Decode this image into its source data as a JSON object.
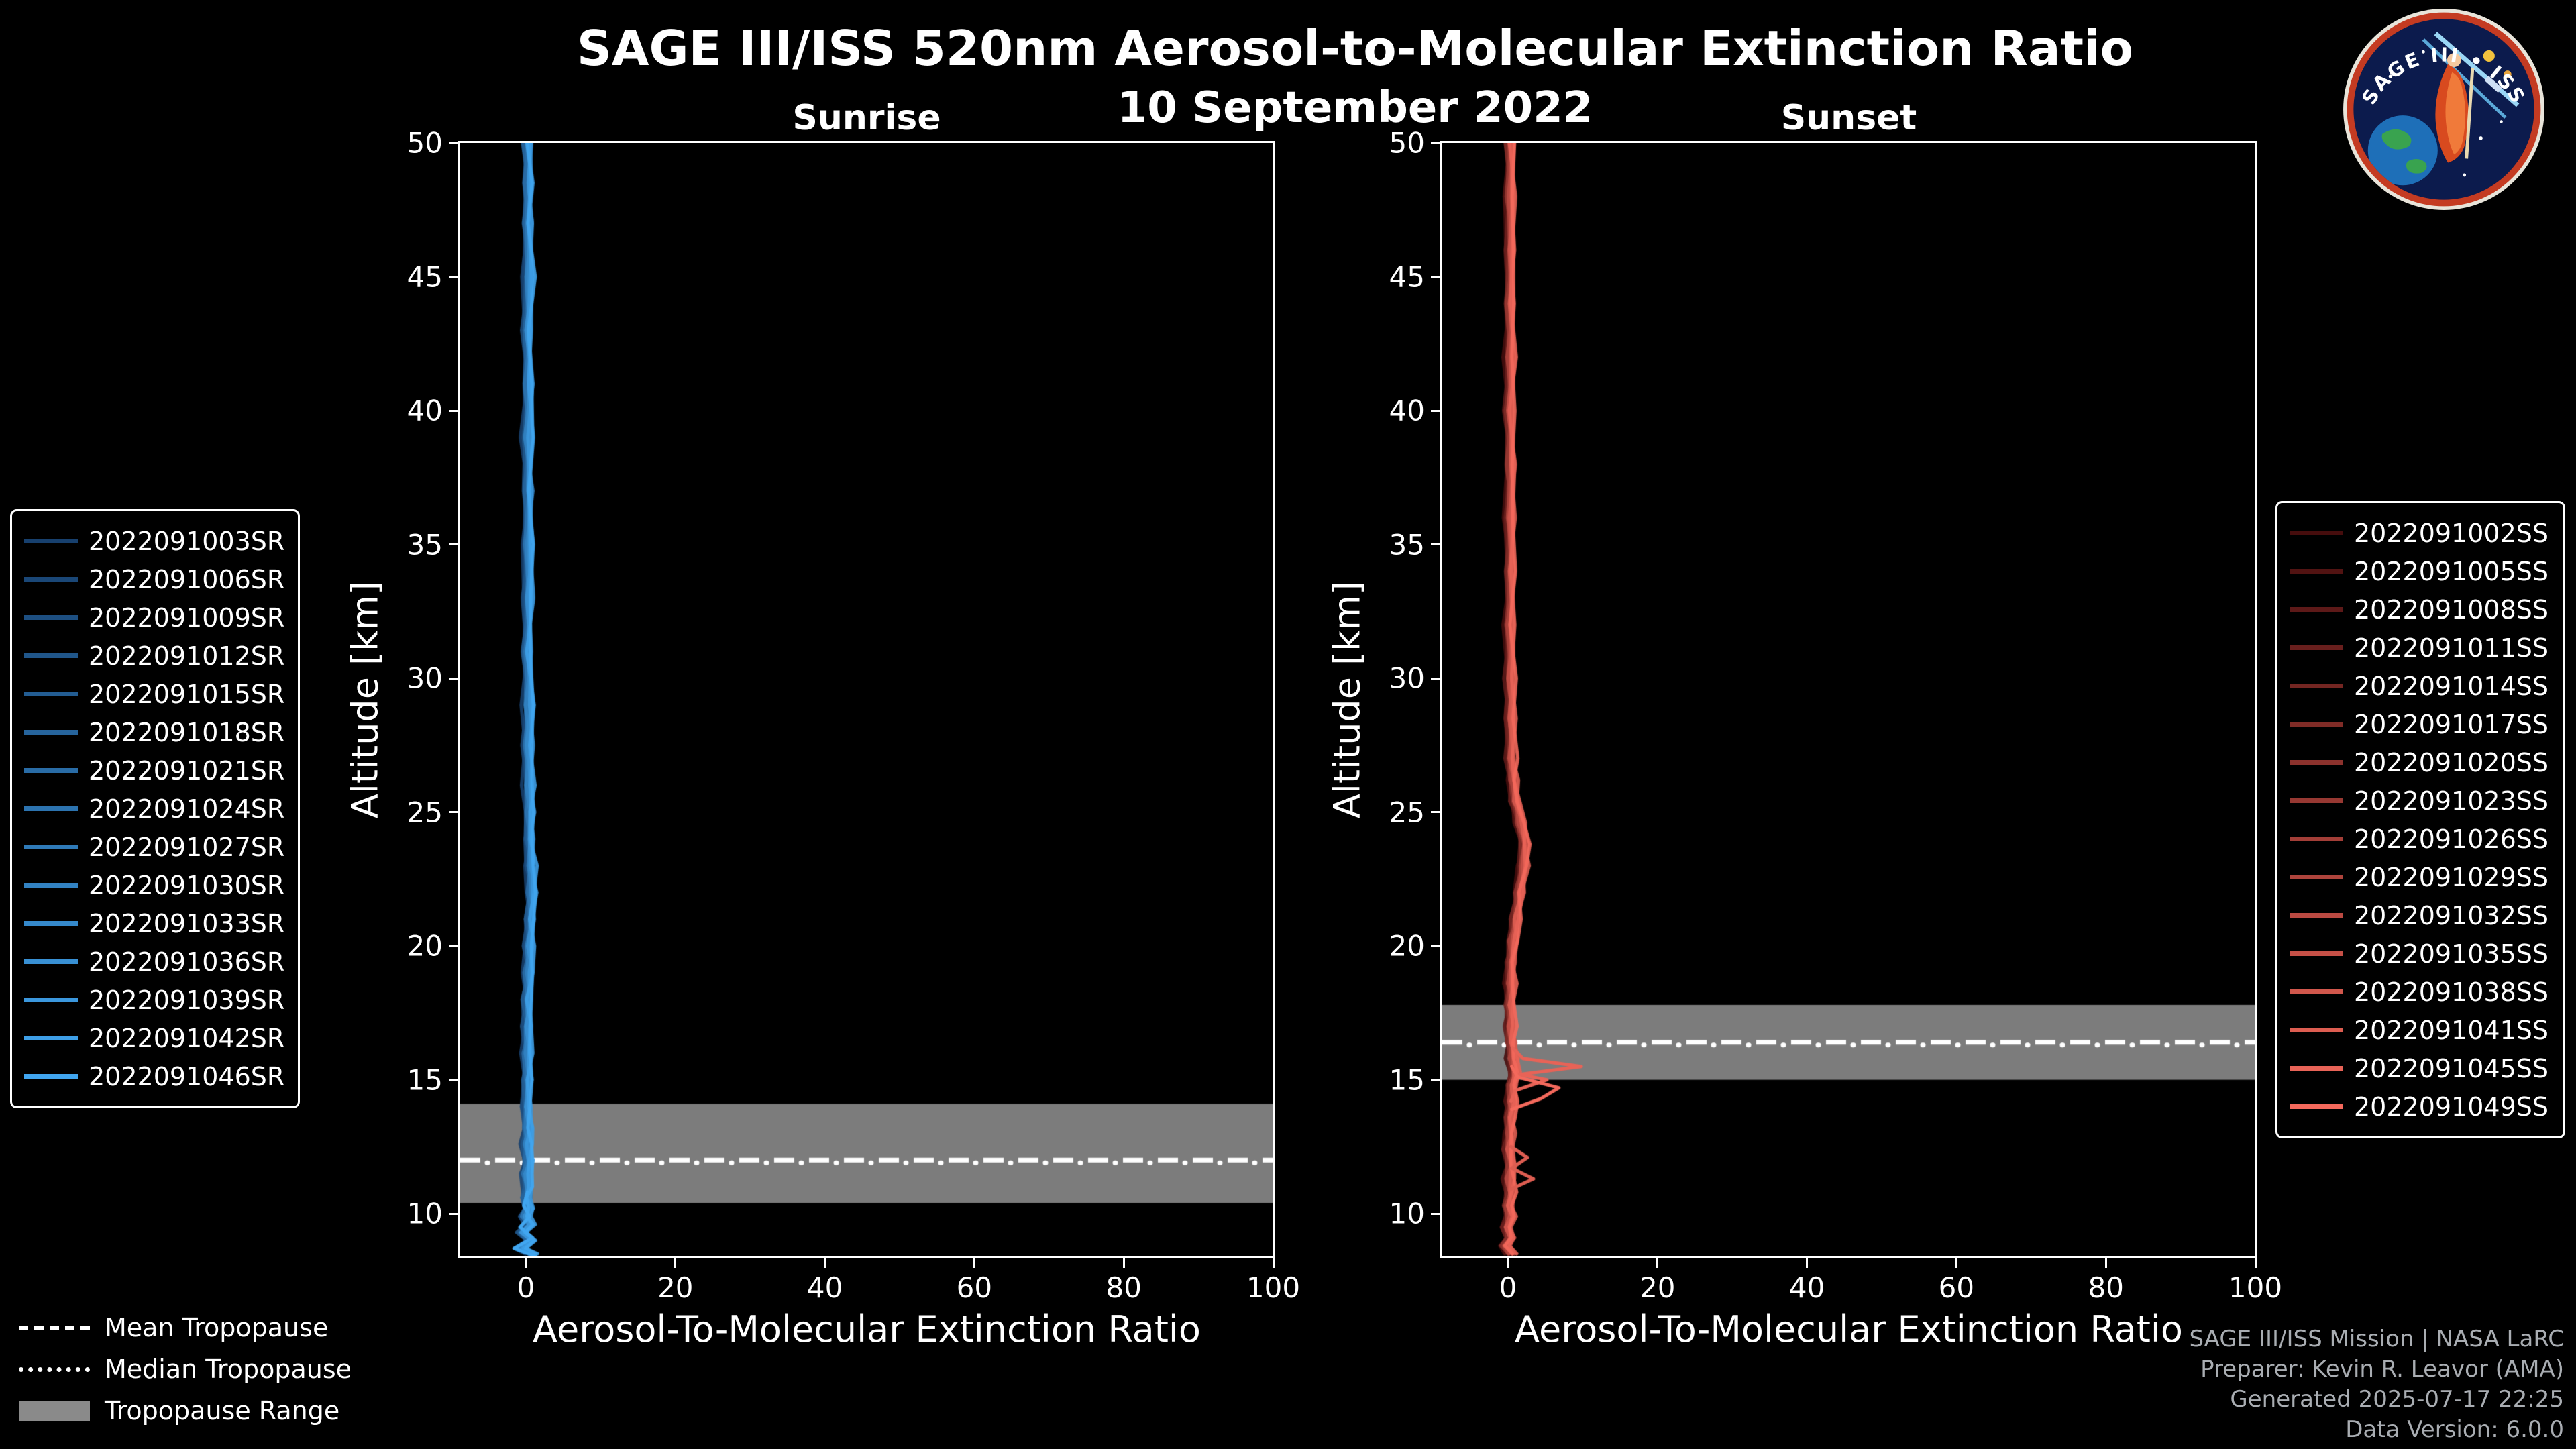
{
  "header": {
    "title": "SAGE III/ISS 520nm Aerosol-to-Molecular Extinction Ratio",
    "date": "10 September 2022"
  },
  "logo": {
    "ring_text": "SAGE III • ISS",
    "ring_color": "#c43b22",
    "bg_color": "#0c1b4d"
  },
  "tropopause_legend": {
    "mean_label": "Mean Tropopause",
    "median_label": "Median Tropopause",
    "range_label": "Tropopause Range",
    "range_color": "#8a8a8a"
  },
  "attribution": {
    "line1": "SAGE III/ISS Mission | NASA LaRC",
    "line2": "Preparer: Kevin R. Leavor (AMA)",
    "line3": "Generated 2025-07-17 22:25",
    "line4": "Data Version: 6.0.0"
  },
  "chart_data": [
    {
      "type": "line",
      "id": "sunrise",
      "title": "Sunrise",
      "xlabel": "Aerosol-To-Molecular Extinction Ratio",
      "ylabel": "Altitude [km]",
      "xlim": [
        -8.8,
        100
      ],
      "ylim": [
        8.4,
        50
      ],
      "xticks": [
        0,
        20,
        40,
        60,
        80,
        100
      ],
      "yticks": [
        10,
        15,
        20,
        25,
        30,
        35,
        40,
        45,
        50
      ],
      "band_color": "#8a8a8a",
      "axis_color": "#ffffff",
      "spread": 0.9,
      "tropopause": {
        "mean_km": 12.0,
        "median_km": 11.9,
        "range_km": [
          10.4,
          14.1
        ]
      },
      "events": [
        {
          "id": "2022091003SR",
          "color": "#17406e"
        },
        {
          "id": "2022091006SR",
          "color": "#1a4777"
        },
        {
          "id": "2022091009SR",
          "color": "#1d4f81"
        },
        {
          "id": "2022091012SR",
          "color": "#20568a"
        },
        {
          "id": "2022091015SR",
          "color": "#235d93"
        },
        {
          "id": "2022091018SR",
          "color": "#26649c"
        },
        {
          "id": "2022091021SR",
          "color": "#296ca6"
        },
        {
          "id": "2022091024SR",
          "color": "#2c73af"
        },
        {
          "id": "2022091027SR",
          "color": "#2f7ab8"
        },
        {
          "id": "2022091030SR",
          "color": "#3282c2"
        },
        {
          "id": "2022091033SR",
          "color": "#3589cb"
        },
        {
          "id": "2022091036SR",
          "color": "#3890d4"
        },
        {
          "id": "2022091039SR",
          "color": "#3b97dd"
        },
        {
          "id": "2022091042SR",
          "color": "#3e9fe7"
        },
        {
          "id": "2022091046SR",
          "color": "#41a6f0"
        }
      ],
      "mean_profile": [
        [
          8.5,
          0.6
        ],
        [
          8.7,
          -0.8
        ],
        [
          9.0,
          0.7
        ],
        [
          9.3,
          -0.5
        ],
        [
          9.6,
          0.5
        ],
        [
          9.9,
          -0.2
        ],
        [
          10.2,
          0.3
        ],
        [
          10.6,
          0.0
        ],
        [
          11.0,
          0.3
        ],
        [
          11.5,
          0.0
        ],
        [
          12.0,
          0.3
        ],
        [
          12.6,
          0.1
        ],
        [
          13.2,
          0.2
        ],
        [
          14.0,
          0.1
        ],
        [
          15.0,
          0.2
        ],
        [
          16.0,
          0.1
        ],
        [
          17.0,
          0.2
        ],
        [
          18.0,
          0.2
        ],
        [
          19.0,
          0.3
        ],
        [
          20.0,
          0.4
        ],
        [
          21.0,
          0.6
        ],
        [
          22.0,
          0.7
        ],
        [
          23.0,
          0.6
        ],
        [
          24.0,
          0.5
        ],
        [
          25.0,
          0.4
        ],
        [
          26.0,
          0.3
        ],
        [
          27.5,
          0.2
        ],
        [
          29.0,
          0.3
        ],
        [
          31.0,
          0.2
        ],
        [
          33.0,
          0.3
        ],
        [
          35.0,
          0.2
        ],
        [
          37.0,
          0.3
        ],
        [
          39.0,
          0.2
        ],
        [
          41.0,
          0.3
        ],
        [
          43.0,
          0.2
        ],
        [
          45.0,
          0.3
        ],
        [
          47.0,
          0.2
        ],
        [
          48.5,
          0.3
        ],
        [
          50.0,
          0.2
        ]
      ],
      "outlier_profiles": [
        {
          "color": "#41a6f0",
          "points": [
            [
              8.4,
              1.3
            ],
            [
              8.7,
              -1.6
            ],
            [
              9.1,
              0.9
            ],
            [
              9.5,
              -0.8
            ],
            [
              9.9,
              0.5
            ],
            [
              10.3,
              -0.3
            ],
            [
              10.8,
              0.2
            ]
          ]
        }
      ]
    },
    {
      "type": "line",
      "id": "sunset",
      "title": "Sunset",
      "xlabel": "Aerosol-To-Molecular Extinction Ratio",
      "ylabel": "Altitude [km]",
      "xlim": [
        -8.8,
        100
      ],
      "ylim": [
        8.4,
        50
      ],
      "xticks": [
        0,
        20,
        40,
        60,
        80,
        100
      ],
      "yticks": [
        10,
        15,
        20,
        25,
        30,
        35,
        40,
        45,
        50
      ],
      "band_color": "#8a8a8a",
      "axis_color": "#ffffff",
      "spread": 0.9,
      "tropopause": {
        "mean_km": 16.4,
        "median_km": 16.3,
        "range_km": [
          15.0,
          17.8
        ]
      },
      "events": [
        {
          "id": "2022091002SS",
          "color": "#460d0d"
        },
        {
          "id": "2022091005SS",
          "color": "#521312"
        },
        {
          "id": "2022091008SS",
          "color": "#5d1918"
        },
        {
          "id": "2022091011SS",
          "color": "#691f1d"
        },
        {
          "id": "2022091014SS",
          "color": "#742622"
        },
        {
          "id": "2022091017SS",
          "color": "#802c27"
        },
        {
          "id": "2022091020SS",
          "color": "#8c322d"
        },
        {
          "id": "2022091023SS",
          "color": "#973832"
        },
        {
          "id": "2022091026SS",
          "color": "#a33e37"
        },
        {
          "id": "2022091029SS",
          "color": "#ae443c"
        },
        {
          "id": "2022091032SS",
          "color": "#ba4a42"
        },
        {
          "id": "2022091035SS",
          "color": "#c65047"
        },
        {
          "id": "2022091038SS",
          "color": "#d1574c"
        },
        {
          "id": "2022091041SS",
          "color": "#dd5d51"
        },
        {
          "id": "2022091045SS",
          "color": "#e86357"
        },
        {
          "id": "2022091049SS",
          "color": "#f4695c"
        }
      ],
      "mean_profile": [
        [
          8.5,
          0.3
        ],
        [
          8.8,
          -0.4
        ],
        [
          9.1,
          0.4
        ],
        [
          9.5,
          -0.2
        ],
        [
          9.9,
          0.3
        ],
        [
          10.3,
          0.0
        ],
        [
          10.8,
          0.3
        ],
        [
          11.3,
          0.1
        ],
        [
          11.8,
          0.3
        ],
        [
          12.4,
          0.1
        ],
        [
          13.0,
          0.2
        ],
        [
          13.6,
          0.3
        ],
        [
          14.2,
          0.4
        ],
        [
          14.8,
          0.5
        ],
        [
          15.3,
          0.9
        ],
        [
          15.8,
          0.6
        ],
        [
          16.4,
          0.4
        ],
        [
          17.0,
          0.3
        ],
        [
          17.8,
          0.3
        ],
        [
          18.6,
          0.3
        ],
        [
          19.4,
          0.4
        ],
        [
          20.2,
          0.6
        ],
        [
          21.0,
          1.0
        ],
        [
          22.0,
          1.5
        ],
        [
          23.0,
          2.0
        ],
        [
          23.8,
          2.2
        ],
        [
          24.6,
          1.6
        ],
        [
          25.4,
          1.0
        ],
        [
          26.2,
          0.6
        ],
        [
          27.0,
          0.4
        ],
        [
          28.5,
          0.3
        ],
        [
          30.0,
          0.3
        ],
        [
          32.0,
          0.2
        ],
        [
          34.0,
          0.3
        ],
        [
          36.0,
          0.2
        ],
        [
          38.0,
          0.3
        ],
        [
          40.0,
          0.2
        ],
        [
          42.0,
          0.3
        ],
        [
          44.0,
          0.2
        ],
        [
          46.0,
          0.3
        ],
        [
          48.0,
          0.2
        ],
        [
          50.0,
          0.3
        ]
      ],
      "outlier_profiles": [
        {
          "color": "#e86357",
          "points": [
            [
              14.2,
              0.4
            ],
            [
              14.6,
              1.0
            ],
            [
              15.0,
              5.2
            ],
            [
              15.2,
              1.5
            ],
            [
              15.5,
              9.8
            ],
            [
              15.8,
              2.0
            ],
            [
              16.2,
              0.6
            ]
          ]
        },
        {
          "color": "#dd5d51",
          "points": [
            [
              10.9,
              0.3
            ],
            [
              11.3,
              3.4
            ],
            [
              11.7,
              0.5
            ],
            [
              12.1,
              2.6
            ],
            [
              12.5,
              0.4
            ]
          ]
        },
        {
          "color": "#f4695c",
          "points": [
            [
              13.9,
              0.5
            ],
            [
              14.3,
              4.4
            ],
            [
              14.7,
              6.8
            ],
            [
              15.1,
              1.3
            ],
            [
              15.5,
              0.5
            ]
          ]
        }
      ]
    }
  ]
}
